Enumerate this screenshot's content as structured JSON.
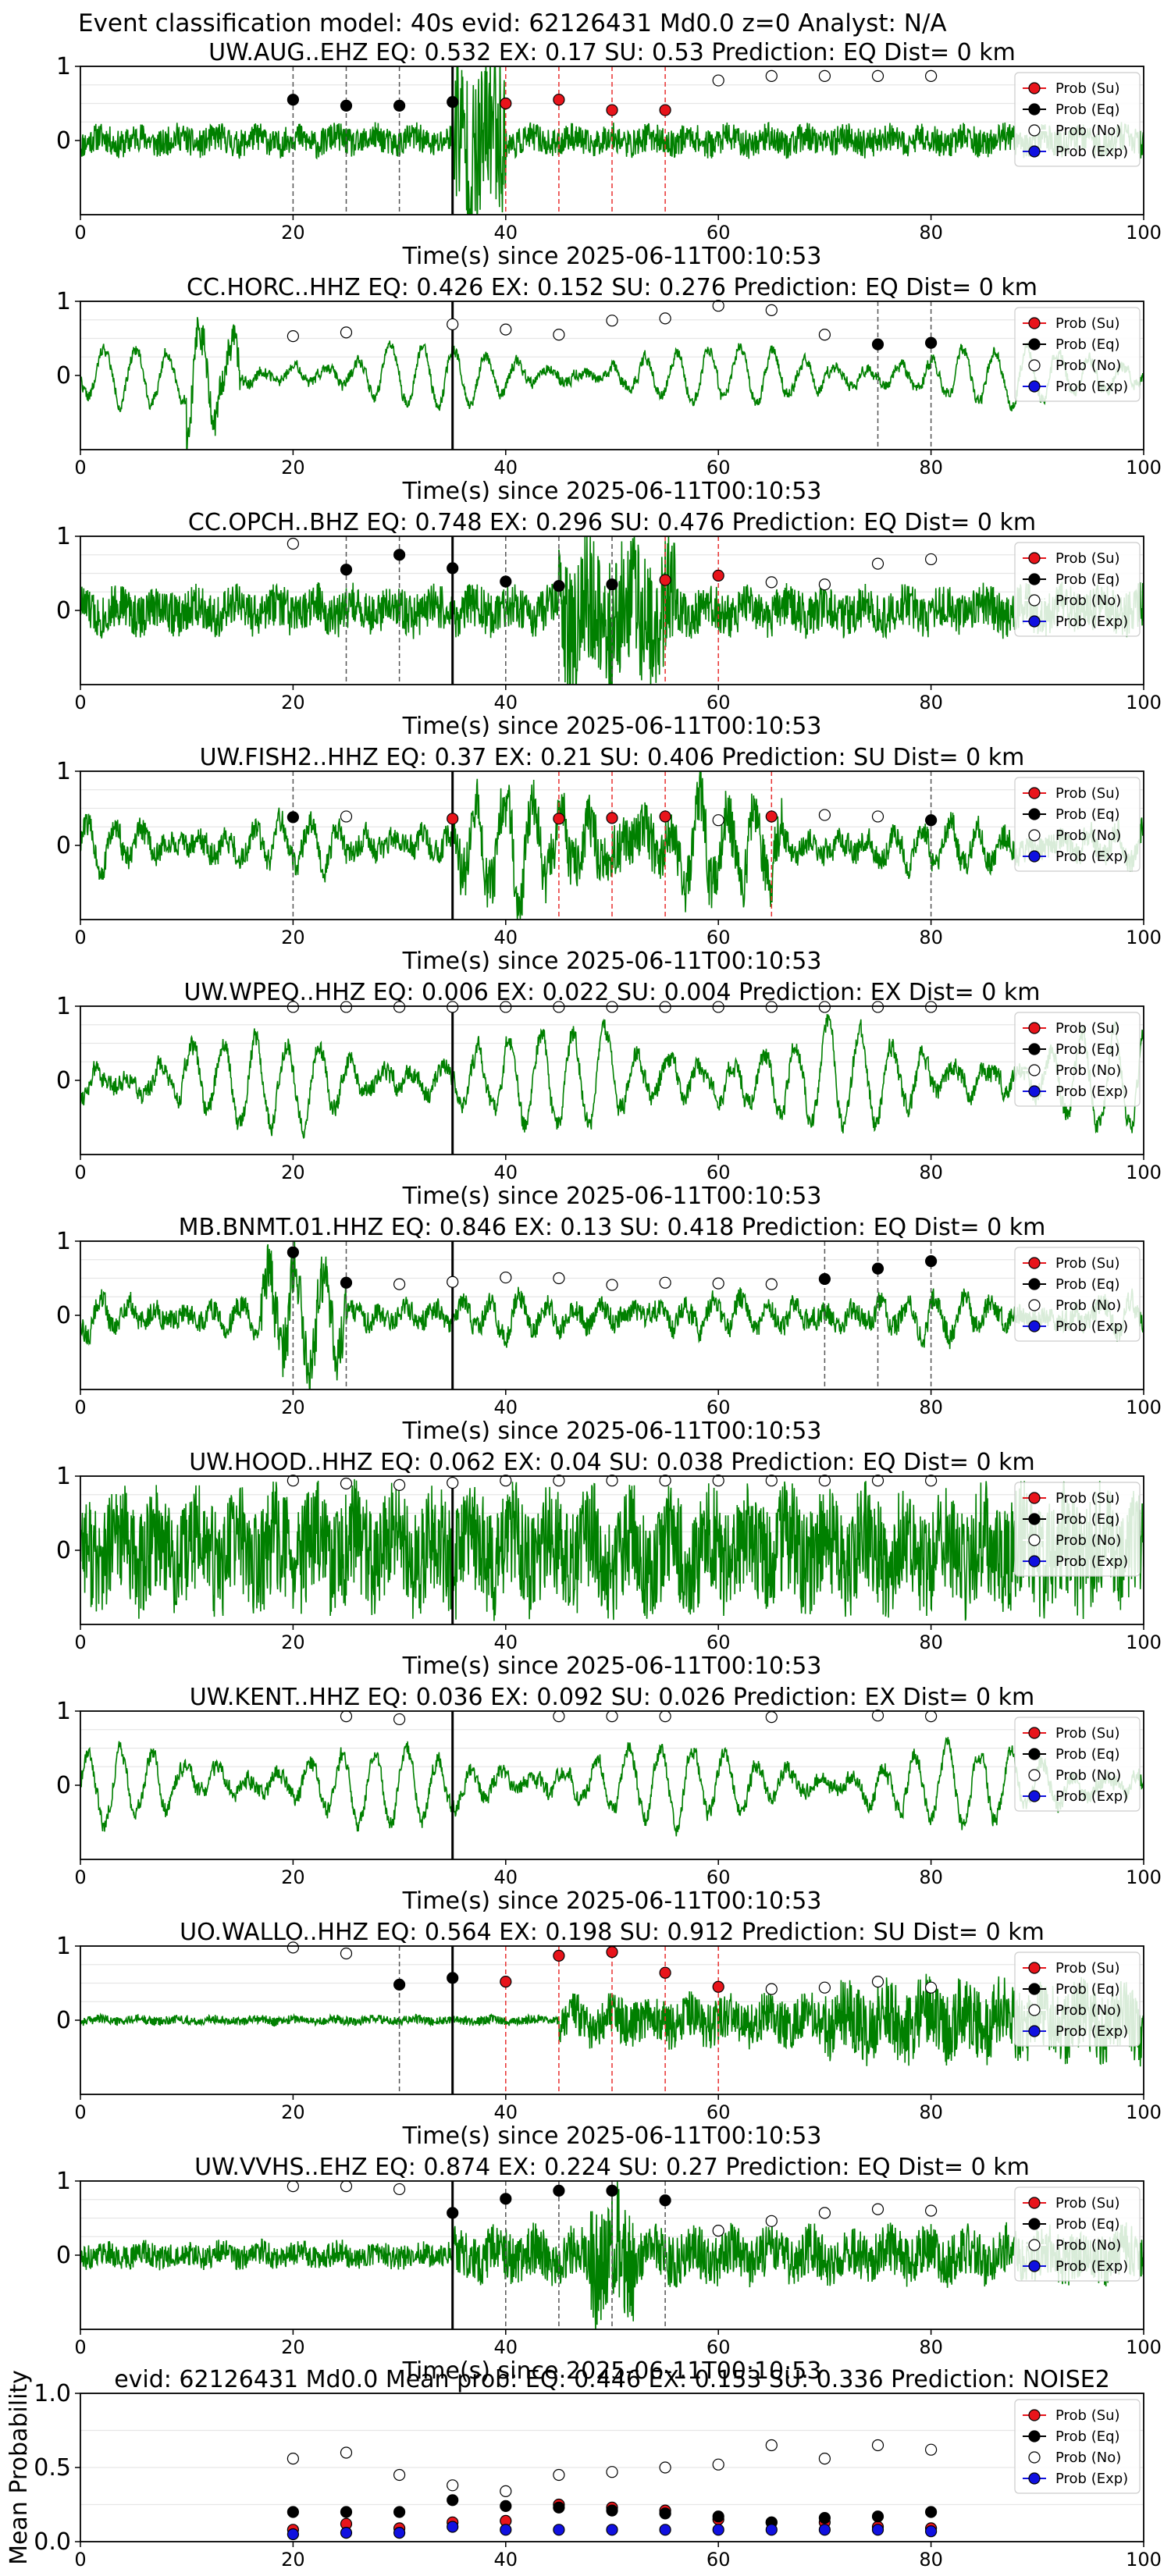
{
  "figure_title": "Event classification model: 40s evid: 62126431 Md0.0 z=0 Analyst: N/A",
  "colors": {
    "waveform": "#008000",
    "eq": "#000000",
    "su": "#e8141b",
    "no": "#ffffff",
    "exp": "#1010e0",
    "eq_vline": "#555555",
    "su_vline": "#e83030",
    "origin_line": "#000000"
  },
  "legend": [
    "Prob (Su)",
    "Prob (Eq)",
    "Prob (No)",
    "Prob (Exp)"
  ],
  "chart_data": [
    {
      "type": "line",
      "title": "UW.AUG..EHZ   EQ: 0.532  EX: 0.17  SU: 0.53   Prediction: EQ    Dist= 0 km",
      "xlabel": "Time(s) since 2025-06-11T00:10:53",
      "xlim": [
        0,
        100
      ],
      "ylim": [
        -1,
        1
      ],
      "xticks": [
        "0",
        "20",
        "40",
        "60",
        "80",
        "100"
      ],
      "yticks": [
        "1",
        "0"
      ],
      "origin_time": 35,
      "wave": {
        "seed": 11,
        "style": "noisy",
        "amp": 0.16,
        "bursts": [
          [
            35,
            40,
            0.95,
            1.4
          ]
        ]
      },
      "points": [
        {
          "t": 20,
          "p": 0.55,
          "c": "eq"
        },
        {
          "t": 25,
          "p": 0.47,
          "c": "eq"
        },
        {
          "t": 30,
          "p": 0.47,
          "c": "eq"
        },
        {
          "t": 35,
          "p": 0.52,
          "c": "eq"
        },
        {
          "t": 40,
          "p": 0.5,
          "c": "su"
        },
        {
          "t": 45,
          "p": 0.55,
          "c": "su"
        },
        {
          "t": 50,
          "p": 0.41,
          "c": "su"
        },
        {
          "t": 55,
          "p": 0.41,
          "c": "su"
        },
        {
          "t": 60,
          "p": 0.81,
          "c": "no"
        },
        {
          "t": 65,
          "p": 0.87,
          "c": "no"
        },
        {
          "t": 70,
          "p": 0.87,
          "c": "no"
        },
        {
          "t": 75,
          "p": 0.87,
          "c": "no"
        },
        {
          "t": 80,
          "p": 0.87,
          "c": "no"
        }
      ]
    },
    {
      "type": "line",
      "title": "CC.HORC..HHZ   EQ: 0.426  EX: 0.152  SU: 0.276   Prediction: EQ    Dist= 0 km",
      "xlabel": "Time(s) since 2025-06-11T00:10:53",
      "xlim": [
        0,
        100
      ],
      "ylim": [
        -1,
        1
      ],
      "xticks": [
        "0",
        "20",
        "40",
        "60",
        "80",
        "100"
      ],
      "yticks": [
        "1",
        "0"
      ],
      "origin_time": 35,
      "wave": {
        "seed": 22,
        "style": "swell",
        "amp": 0.45,
        "bursts": [
          [
            10,
            15,
            1.0,
            1.5
          ]
        ]
      },
      "points": [
        {
          "t": 20,
          "p": 0.53,
          "c": "no"
        },
        {
          "t": 25,
          "p": 0.58,
          "c": "no"
        },
        {
          "t": 35,
          "p": 0.69,
          "c": "no"
        },
        {
          "t": 40,
          "p": 0.62,
          "c": "no"
        },
        {
          "t": 45,
          "p": 0.55,
          "c": "no"
        },
        {
          "t": 50,
          "p": 0.74,
          "c": "no"
        },
        {
          "t": 55,
          "p": 0.77,
          "c": "no"
        },
        {
          "t": 60,
          "p": 0.94,
          "c": "no"
        },
        {
          "t": 65,
          "p": 0.88,
          "c": "no"
        },
        {
          "t": 70,
          "p": 0.55,
          "c": "no"
        },
        {
          "t": 75,
          "p": 0.42,
          "c": "eq"
        },
        {
          "t": 80,
          "p": 0.44,
          "c": "eq"
        }
      ]
    },
    {
      "type": "line",
      "title": "CC.OPCH..BHZ   EQ: 0.748  EX: 0.296  SU: 0.476   Prediction: EQ    Dist= 0 km",
      "xlabel": "Time(s) since 2025-06-11T00:10:53",
      "xlim": [
        0,
        100
      ],
      "ylim": [
        -1,
        1
      ],
      "xticks": [
        "0",
        "20",
        "40",
        "60",
        "80",
        "100"
      ],
      "yticks": [
        "1",
        "0"
      ],
      "origin_time": 35,
      "wave": {
        "seed": 33,
        "style": "noisy",
        "amp": 0.25,
        "bursts": [
          [
            45,
            56,
            0.75,
            1.1
          ]
        ]
      },
      "points": [
        {
          "t": 20,
          "p": 0.9,
          "c": "no"
        },
        {
          "t": 25,
          "p": 0.55,
          "c": "eq"
        },
        {
          "t": 30,
          "p": 0.75,
          "c": "eq"
        },
        {
          "t": 35,
          "p": 0.57,
          "c": "eq"
        },
        {
          "t": 40,
          "p": 0.39,
          "c": "eq"
        },
        {
          "t": 45,
          "p": 0.33,
          "c": "eq"
        },
        {
          "t": 50,
          "p": 0.35,
          "c": "eq"
        },
        {
          "t": 55,
          "p": 0.41,
          "c": "su"
        },
        {
          "t": 60,
          "p": 0.47,
          "c": "su"
        },
        {
          "t": 65,
          "p": 0.38,
          "c": "no"
        },
        {
          "t": 70,
          "p": 0.35,
          "c": "no"
        },
        {
          "t": 75,
          "p": 0.63,
          "c": "no"
        },
        {
          "t": 80,
          "p": 0.69,
          "c": "no"
        }
      ]
    },
    {
      "type": "line",
      "title": "UW.FISH2..HHZ   EQ: 0.37  EX: 0.21  SU: 0.406   Prediction: SU    Dist= 0 km",
      "xlabel": "Time(s) since 2025-06-11T00:10:53",
      "xlim": [
        0,
        100
      ],
      "ylim": [
        -1,
        1
      ],
      "xticks": [
        "0",
        "20",
        "40",
        "60",
        "80",
        "100"
      ],
      "yticks": [
        "1",
        "0"
      ],
      "origin_time": 35,
      "wave": {
        "seed": 44,
        "style": "mixed",
        "amp": 0.4,
        "bursts": [
          [
            35,
            66,
            0.8,
            1.0
          ]
        ]
      },
      "points": [
        {
          "t": 20,
          "p": 0.38,
          "c": "eq"
        },
        {
          "t": 25,
          "p": 0.39,
          "c": "no"
        },
        {
          "t": 35,
          "p": 0.36,
          "c": "su"
        },
        {
          "t": 45,
          "p": 0.36,
          "c": "su"
        },
        {
          "t": 50,
          "p": 0.37,
          "c": "su"
        },
        {
          "t": 55,
          "p": 0.39,
          "c": "su"
        },
        {
          "t": 60,
          "p": 0.34,
          "c": "no"
        },
        {
          "t": 65,
          "p": 0.39,
          "c": "su"
        },
        {
          "t": 70,
          "p": 0.41,
          "c": "no"
        },
        {
          "t": 75,
          "p": 0.39,
          "c": "no"
        },
        {
          "t": 80,
          "p": 0.34,
          "c": "eq"
        }
      ]
    },
    {
      "type": "line",
      "title": "UW.WPEQ..HHZ   EQ: 0.006  EX: 0.022  SU: 0.004   Prediction: EX    Dist= 0 km",
      "xlabel": "Time(s) since 2025-06-11T00:10:53",
      "xlim": [
        0,
        100
      ],
      "ylim": [
        -1,
        1
      ],
      "xticks": [
        "0",
        "20",
        "40",
        "60",
        "80",
        "100"
      ],
      "yticks": [
        "1",
        "0"
      ],
      "origin_time": 35,
      "wave": {
        "seed": 55,
        "style": "swell",
        "amp": 0.75,
        "bursts": []
      },
      "points": [
        {
          "t": 20,
          "p": 0.99,
          "c": "no"
        },
        {
          "t": 25,
          "p": 0.99,
          "c": "no"
        },
        {
          "t": 30,
          "p": 0.99,
          "c": "no"
        },
        {
          "t": 35,
          "p": 0.99,
          "c": "no"
        },
        {
          "t": 40,
          "p": 0.99,
          "c": "no"
        },
        {
          "t": 45,
          "p": 0.99,
          "c": "no"
        },
        {
          "t": 50,
          "p": 0.99,
          "c": "no"
        },
        {
          "t": 55,
          "p": 0.99,
          "c": "no"
        },
        {
          "t": 60,
          "p": 0.99,
          "c": "no"
        },
        {
          "t": 65,
          "p": 0.99,
          "c": "no"
        },
        {
          "t": 70,
          "p": 0.99,
          "c": "no"
        },
        {
          "t": 75,
          "p": 0.99,
          "c": "no"
        },
        {
          "t": 80,
          "p": 0.99,
          "c": "no"
        }
      ]
    },
    {
      "type": "line",
      "title": "MB.BNMT.01.HHZ   EQ: 0.846  EX: 0.13  SU: 0.418   Prediction: EQ    Dist= 0 km",
      "xlabel": "Time(s) since 2025-06-11T00:10:53",
      "xlim": [
        0,
        100
      ],
      "ylim": [
        -1,
        1
      ],
      "xticks": [
        "0",
        "20",
        "40",
        "60",
        "80",
        "100"
      ],
      "yticks": [
        "1",
        "0"
      ],
      "origin_time": 35,
      "wave": {
        "seed": 66,
        "style": "mixed",
        "amp": 0.35,
        "bursts": [
          [
            17,
            25,
            0.9,
            1.1
          ]
        ]
      },
      "points": [
        {
          "t": 20,
          "p": 0.85,
          "c": "eq"
        },
        {
          "t": 25,
          "p": 0.44,
          "c": "eq"
        },
        {
          "t": 30,
          "p": 0.42,
          "c": "no"
        },
        {
          "t": 35,
          "p": 0.45,
          "c": "no"
        },
        {
          "t": 40,
          "p": 0.51,
          "c": "no"
        },
        {
          "t": 45,
          "p": 0.5,
          "c": "no"
        },
        {
          "t": 50,
          "p": 0.41,
          "c": "no"
        },
        {
          "t": 55,
          "p": 0.44,
          "c": "no"
        },
        {
          "t": 60,
          "p": 0.43,
          "c": "no"
        },
        {
          "t": 65,
          "p": 0.42,
          "c": "no"
        },
        {
          "t": 70,
          "p": 0.49,
          "c": "eq"
        },
        {
          "t": 75,
          "p": 0.63,
          "c": "eq"
        },
        {
          "t": 80,
          "p": 0.73,
          "c": "eq"
        }
      ]
    },
    {
      "type": "line",
      "title": "UW.HOOD..HHZ   EQ: 0.062  EX: 0.04  SU: 0.038   Prediction: EQ    Dist= 0 km",
      "xlabel": "Time(s) since 2025-06-11T00:10:53",
      "xlim": [
        0,
        100
      ],
      "ylim": [
        -1,
        1
      ],
      "xticks": [
        "0",
        "20",
        "40",
        "60",
        "80",
        "100"
      ],
      "yticks": [
        "1",
        "0"
      ],
      "origin_time": 35,
      "wave": {
        "seed": 77,
        "style": "noisy",
        "amp": 0.62,
        "bursts": []
      },
      "points": [
        {
          "t": 20,
          "p": 0.94,
          "c": "no"
        },
        {
          "t": 25,
          "p": 0.9,
          "c": "no"
        },
        {
          "t": 30,
          "p": 0.88,
          "c": "no"
        },
        {
          "t": 35,
          "p": 0.91,
          "c": "no"
        },
        {
          "t": 40,
          "p": 0.94,
          "c": "no"
        },
        {
          "t": 45,
          "p": 0.94,
          "c": "no"
        },
        {
          "t": 50,
          "p": 0.94,
          "c": "no"
        },
        {
          "t": 55,
          "p": 0.94,
          "c": "no"
        },
        {
          "t": 60,
          "p": 0.94,
          "c": "no"
        },
        {
          "t": 65,
          "p": 0.94,
          "c": "no"
        },
        {
          "t": 70,
          "p": 0.94,
          "c": "no"
        },
        {
          "t": 75,
          "p": 0.94,
          "c": "no"
        },
        {
          "t": 80,
          "p": 0.94,
          "c": "no"
        }
      ]
    },
    {
      "type": "line",
      "title": "UW.KENT..HHZ   EQ: 0.036  EX: 0.092  SU: 0.026   Prediction: EX    Dist= 0 km",
      "xlabel": "Time(s) since 2025-06-11T00:10:53",
      "xlim": [
        0,
        100
      ],
      "ylim": [
        -1,
        1
      ],
      "xticks": [
        "0",
        "20",
        "40",
        "60",
        "80",
        "100"
      ],
      "yticks": [
        "1",
        "0"
      ],
      "origin_time": 35,
      "wave": {
        "seed": 88,
        "style": "swell",
        "amp": 0.62,
        "bursts": []
      },
      "points": [
        {
          "t": 25,
          "p": 0.93,
          "c": "no"
        },
        {
          "t": 30,
          "p": 0.89,
          "c": "no"
        },
        {
          "t": 45,
          "p": 0.93,
          "c": "no"
        },
        {
          "t": 50,
          "p": 0.93,
          "c": "no"
        },
        {
          "t": 55,
          "p": 0.93,
          "c": "no"
        },
        {
          "t": 65,
          "p": 0.92,
          "c": "no"
        },
        {
          "t": 75,
          "p": 0.94,
          "c": "no"
        },
        {
          "t": 80,
          "p": 0.93,
          "c": "no"
        }
      ]
    },
    {
      "type": "line",
      "title": "UO.WALLO..HHZ   EQ: 0.564  EX: 0.198  SU: 0.912   Prediction: SU    Dist= 0 km",
      "xlabel": "Time(s) since 2025-06-11T00:10:53",
      "xlim": [
        0,
        100
      ],
      "ylim": [
        -1,
        1
      ],
      "xticks": [
        "0",
        "20",
        "40",
        "60",
        "80",
        "100"
      ],
      "yticks": [
        "1",
        "0"
      ],
      "origin_time": 35,
      "wave": {
        "seed": 99,
        "style": "noisy",
        "amp": 0.05,
        "bursts": [
          [
            45,
            70,
            0.35,
            1.0
          ],
          [
            70,
            100,
            0.6,
            1.0
          ]
        ]
      },
      "points": [
        {
          "t": 20,
          "p": 0.98,
          "c": "no"
        },
        {
          "t": 25,
          "p": 0.9,
          "c": "no"
        },
        {
          "t": 30,
          "p": 0.48,
          "c": "eq"
        },
        {
          "t": 35,
          "p": 0.57,
          "c": "eq"
        },
        {
          "t": 40,
          "p": 0.52,
          "c": "su"
        },
        {
          "t": 45,
          "p": 0.87,
          "c": "su"
        },
        {
          "t": 50,
          "p": 0.92,
          "c": "su"
        },
        {
          "t": 55,
          "p": 0.64,
          "c": "su"
        },
        {
          "t": 60,
          "p": 0.45,
          "c": "su"
        },
        {
          "t": 65,
          "p": 0.42,
          "c": "no"
        },
        {
          "t": 70,
          "p": 0.44,
          "c": "no"
        },
        {
          "t": 75,
          "p": 0.52,
          "c": "no"
        },
        {
          "t": 80,
          "p": 0.44,
          "c": "no"
        }
      ]
    },
    {
      "type": "line",
      "title": "UW.VVHS..EHZ   EQ: 0.874  EX: 0.224  SU: 0.27   Prediction: EQ    Dist= 0 km",
      "xlabel": "Time(s) since 2025-06-11T00:10:53",
      "xlim": [
        0,
        100
      ],
      "ylim": [
        -1,
        1
      ],
      "xticks": [
        "0",
        "20",
        "40",
        "60",
        "80",
        "100"
      ],
      "yticks": [
        "1",
        "0"
      ],
      "origin_time": 35,
      "wave": {
        "seed": 111,
        "style": "noisy",
        "amp": 0.14,
        "bursts": [
          [
            35,
            100,
            0.25,
            1.0
          ],
          [
            48,
            52,
            0.9,
            1.0
          ]
        ]
      },
      "points": [
        {
          "t": 20,
          "p": 0.93,
          "c": "no"
        },
        {
          "t": 25,
          "p": 0.93,
          "c": "no"
        },
        {
          "t": 30,
          "p": 0.89,
          "c": "no"
        },
        {
          "t": 35,
          "p": 0.57,
          "c": "eq"
        },
        {
          "t": 40,
          "p": 0.76,
          "c": "eq"
        },
        {
          "t": 45,
          "p": 0.87,
          "c": "eq"
        },
        {
          "t": 50,
          "p": 0.87,
          "c": "eq"
        },
        {
          "t": 55,
          "p": 0.74,
          "c": "eq"
        },
        {
          "t": 60,
          "p": 0.33,
          "c": "no"
        },
        {
          "t": 65,
          "p": 0.46,
          "c": "no"
        },
        {
          "t": 70,
          "p": 0.57,
          "c": "no"
        },
        {
          "t": 75,
          "p": 0.62,
          "c": "no"
        },
        {
          "t": 80,
          "p": 0.6,
          "c": "no"
        }
      ]
    },
    {
      "type": "scatter",
      "title": "evid: 62126431  Md0.0   Mean prob:   EQ: 0.446  EX: 0.153  SU: 0.336   Prediction: NOISE2",
      "ylabel": "Mean Probability",
      "xlim": [
        0,
        100
      ],
      "ylim": [
        0,
        1
      ],
      "xticks": [
        "0",
        "20",
        "40",
        "60",
        "80",
        "100"
      ],
      "yticks": [
        "1.0",
        "0.5",
        "0.0"
      ],
      "series": [
        {
          "name": "Prob (Su)",
          "c": "su",
          "x": [
            20,
            25,
            30,
            35,
            40,
            45,
            50,
            55,
            60,
            65,
            70,
            75,
            80
          ],
          "y": [
            0.08,
            0.12,
            0.09,
            0.13,
            0.14,
            0.25,
            0.23,
            0.21,
            0.15,
            0.13,
            0.13,
            0.1,
            0.09
          ]
        },
        {
          "name": "Prob (Eq)",
          "c": "eq",
          "x": [
            20,
            25,
            30,
            35,
            40,
            45,
            50,
            55,
            60,
            65,
            70,
            75,
            80
          ],
          "y": [
            0.2,
            0.2,
            0.2,
            0.28,
            0.24,
            0.23,
            0.21,
            0.19,
            0.17,
            0.13,
            0.16,
            0.17,
            0.2
          ]
        },
        {
          "name": "Prob (No)",
          "c": "no",
          "x": [
            20,
            25,
            30,
            35,
            40,
            45,
            50,
            55,
            60,
            65,
            70,
            75,
            80
          ],
          "y": [
            0.56,
            0.6,
            0.45,
            0.38,
            0.34,
            0.45,
            0.47,
            0.5,
            0.52,
            0.65,
            0.56,
            0.65,
            0.62
          ]
        },
        {
          "name": "Prob (Exp)",
          "c": "exp",
          "x": [
            20,
            25,
            30,
            35,
            40,
            45,
            50,
            55,
            60,
            65,
            70,
            75,
            80
          ],
          "y": [
            0.05,
            0.06,
            0.06,
            0.1,
            0.08,
            0.08,
            0.08,
            0.08,
            0.08,
            0.08,
            0.08,
            0.08,
            0.07
          ]
        }
      ]
    }
  ]
}
